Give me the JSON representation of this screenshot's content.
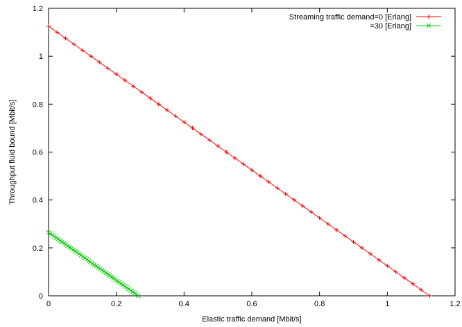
{
  "chart_data": {
    "type": "line",
    "title": "",
    "xlabel": "Elastic traffic demand [Mbit/s]",
    "ylabel": "Throughput fluid bound [Mbit/s]",
    "xlim": [
      0,
      1.2
    ],
    "ylim": [
      0,
      1.2
    ],
    "xticks": [
      0,
      0.2,
      0.4,
      0.6,
      0.8,
      1,
      1.2
    ],
    "yticks": [
      0,
      0.2,
      0.4,
      0.6,
      0.8,
      1,
      1.2
    ],
    "xtick_labels": [
      "0",
      "0.2",
      "0.4",
      "0.6",
      "0.8",
      "1",
      "1.2"
    ],
    "ytick_labels": [
      "0",
      "0.2",
      "0.4",
      "0.6",
      "0.8",
      "1",
      "1.2"
    ],
    "grid": false,
    "legend_position": "top-right",
    "series": [
      {
        "name": "Streaming traffic demand=0 [Erlang]",
        "color": "#ff0000",
        "marker": "plus",
        "x_start": 0,
        "x_end": 1.125,
        "y_start": 1.125,
        "y_end": 0,
        "points": 46
      },
      {
        "name": "=30 [Erlang]",
        "color": "#00cc00",
        "marker": "cross",
        "x_start": 0,
        "x_end": 0.265,
        "y_start": 0.265,
        "y_end": 0,
        "points": 48
      }
    ]
  }
}
